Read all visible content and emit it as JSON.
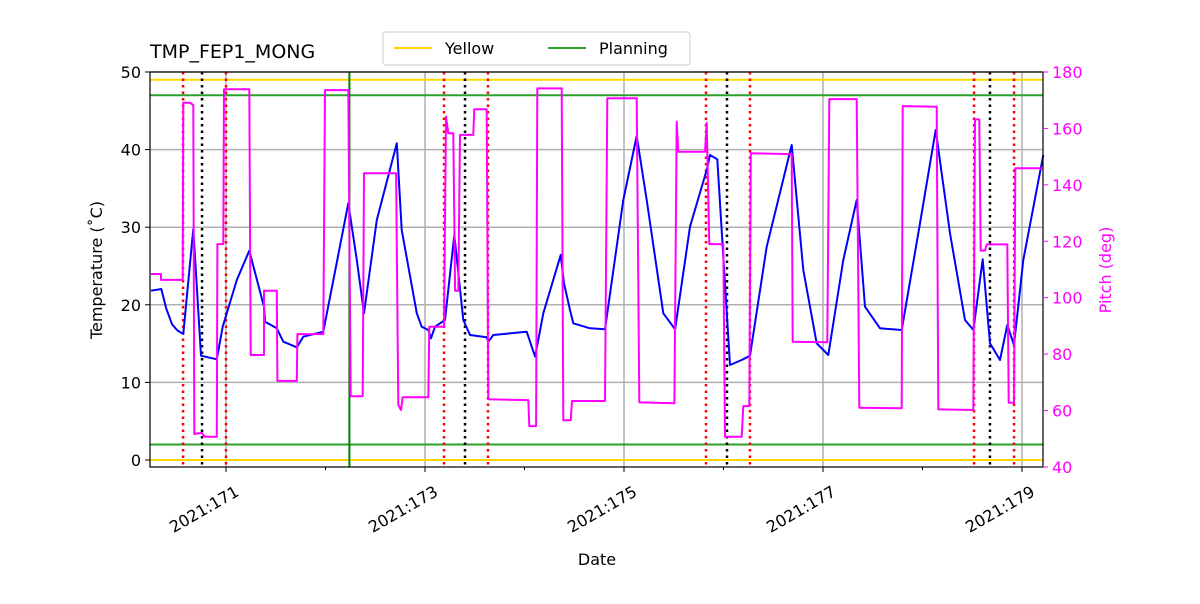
{
  "chart_data": {
    "type": "line",
    "title": "TMP_FEP1_MONG",
    "xlabel": "Date",
    "ylabel": "Temperature ($^\\circ$C)",
    "ylabel_display": "Temperature (˚C)",
    "y2label": "Pitch (deg)",
    "xlim": [
      170.236,
      179.211
    ],
    "ylim": [
      -0.9,
      50
    ],
    "y2lim": [
      40,
      180
    ],
    "grid": true,
    "legend_placement": "top-center (above axes)",
    "x_ticks": [
      {
        "value": 171,
        "label": "2021:171"
      },
      {
        "value": 173,
        "label": "2021:173"
      },
      {
        "value": 175,
        "label": "2021:175"
      },
      {
        "value": 177,
        "label": "2021:177"
      },
      {
        "value": 179,
        "label": "2021:179"
      }
    ],
    "x_minor_ticks": [
      172,
      174,
      176,
      178
    ],
    "y_ticks": [
      0,
      10,
      20,
      30,
      40,
      50
    ],
    "y2_ticks": [
      40,
      60,
      80,
      100,
      120,
      140,
      160,
      180
    ],
    "colors": {
      "temperature": "#0000ff",
      "pitch": "#ff00ff",
      "yellow": "#ffd700",
      "planning": "#2ca02c",
      "planning_vline": "#008000",
      "red_dotted": "#ff0000",
      "black_dotted": "#000000",
      "grid": "#b0b0b0"
    },
    "limit_lines": [
      {
        "name": "Yellow",
        "values": [
          49,
          0
        ],
        "color": "#ffd700"
      },
      {
        "name": "Planning",
        "values": [
          47,
          2
        ],
        "color": "#2ca02c"
      }
    ],
    "legend": [
      "Yellow",
      "Planning"
    ],
    "vertical_lines": {
      "planning": [
        172.24
      ],
      "red_dotted": [
        170.568,
        171.0,
        173.191,
        173.633,
        175.824,
        176.266,
        178.518,
        178.92
      ],
      "black_dotted": [
        170.759,
        173.402,
        176.035,
        178.678
      ]
    },
    "series": [
      {
        "axis": "left",
        "color": "#0000ff",
        "points": [
          [
            170.246,
            21.82
          ],
          [
            170.35,
            22.04
          ],
          [
            170.4,
            19.5
          ],
          [
            170.457,
            17.5
          ],
          [
            170.51,
            16.7
          ],
          [
            170.571,
            16.24
          ],
          [
            170.671,
            29.77
          ],
          [
            170.749,
            13.44
          ],
          [
            170.907,
            12.98
          ],
          [
            170.967,
            17.18
          ],
          [
            171.108,
            23.2
          ],
          [
            171.234,
            26.97
          ],
          [
            171.382,
            19.76
          ],
          [
            171.392,
            17.82
          ],
          [
            171.51,
            16.97
          ],
          [
            171.576,
            15.24
          ],
          [
            171.711,
            14.52
          ],
          [
            171.777,
            15.89
          ],
          [
            171.978,
            16.53
          ],
          [
            172.229,
            33.08
          ],
          [
            172.314,
            25.77
          ],
          [
            172.387,
            18.9
          ],
          [
            172.515,
            30.93
          ],
          [
            172.716,
            40.81
          ],
          [
            172.766,
            29.64
          ],
          [
            172.917,
            18.9
          ],
          [
            172.967,
            17.18
          ],
          [
            173.033,
            16.75
          ],
          [
            173.06,
            15.68
          ],
          [
            173.1,
            17.18
          ],
          [
            173.201,
            18.04
          ],
          [
            173.294,
            29.0
          ],
          [
            173.385,
            18.04
          ],
          [
            173.452,
            16.11
          ],
          [
            173.62,
            15.81
          ],
          [
            173.636,
            15.24
          ],
          [
            173.686,
            16.11
          ],
          [
            174.022,
            16.53
          ],
          [
            174.106,
            13.31
          ],
          [
            174.189,
            18.9
          ],
          [
            174.364,
            26.42
          ],
          [
            174.397,
            22.77
          ],
          [
            174.457,
            19.33
          ],
          [
            174.49,
            17.62
          ],
          [
            174.658,
            16.97
          ],
          [
            174.809,
            16.84
          ],
          [
            174.993,
            33.51
          ],
          [
            175.128,
            41.75
          ],
          [
            175.228,
            33.51
          ],
          [
            175.395,
            18.9
          ],
          [
            175.513,
            16.84
          ],
          [
            175.663,
            30.06
          ],
          [
            175.831,
            37.37
          ],
          [
            175.864,
            39.3
          ],
          [
            175.938,
            38.75
          ],
          [
            176.065,
            12.24
          ],
          [
            176.183,
            12.89
          ],
          [
            176.266,
            13.44
          ],
          [
            176.434,
            27.49
          ],
          [
            176.685,
            40.59
          ],
          [
            176.802,
            24.48
          ],
          [
            176.937,
            15.04
          ],
          [
            177.053,
            13.53
          ],
          [
            177.204,
            25.77
          ],
          [
            177.339,
            33.51
          ],
          [
            177.422,
            19.76
          ],
          [
            177.573,
            16.97
          ],
          [
            177.791,
            16.75
          ],
          [
            177.975,
            30.5
          ],
          [
            178.133,
            42.53
          ],
          [
            178.276,
            29.21
          ],
          [
            178.427,
            18.04
          ],
          [
            178.511,
            16.75
          ],
          [
            178.605,
            25.86
          ],
          [
            178.678,
            15.04
          ],
          [
            178.779,
            12.89
          ],
          [
            178.852,
            17.4
          ],
          [
            178.92,
            14.82
          ],
          [
            179.013,
            25.77
          ],
          [
            179.214,
            39.3
          ]
        ]
      },
      {
        "axis": "right",
        "color": "#ff00ff",
        "points": [
          [
            170.246,
            108.4
          ],
          [
            170.347,
            108.4
          ],
          [
            170.347,
            106.3
          ],
          [
            170.565,
            106.3
          ],
          [
            170.571,
            169.1
          ],
          [
            170.638,
            169.1
          ],
          [
            170.671,
            168.3
          ],
          [
            170.681,
            51.7
          ],
          [
            170.756,
            52.1
          ],
          [
            170.789,
            50.7
          ],
          [
            170.907,
            50.7
          ],
          [
            170.913,
            119.0
          ],
          [
            170.973,
            119.0
          ],
          [
            170.98,
            173.9
          ],
          [
            171.234,
            173.9
          ],
          [
            171.248,
            79.7
          ],
          [
            171.382,
            79.7
          ],
          [
            171.382,
            102.5
          ],
          [
            171.51,
            102.5
          ],
          [
            171.516,
            70.5
          ],
          [
            171.711,
            70.5
          ],
          [
            171.717,
            87.1
          ],
          [
            171.978,
            87.1
          ],
          [
            171.995,
            173.6
          ],
          [
            172.229,
            173.6
          ],
          [
            172.253,
            65.1
          ],
          [
            172.374,
            65.1
          ],
          [
            172.387,
            144.1
          ],
          [
            172.709,
            144.1
          ],
          [
            172.732,
            62.0
          ],
          [
            172.759,
            60.2
          ],
          [
            172.776,
            64.7
          ],
          [
            173.033,
            64.7
          ],
          [
            173.043,
            89.7
          ],
          [
            173.191,
            89.7
          ],
          [
            173.211,
            164.2
          ],
          [
            173.234,
            158.3
          ],
          [
            173.284,
            158.3
          ],
          [
            173.302,
            102.5
          ],
          [
            173.335,
            102.5
          ],
          [
            173.352,
            157.7
          ],
          [
            173.485,
            157.7
          ],
          [
            173.495,
            166.8
          ],
          [
            173.62,
            166.8
          ],
          [
            173.636,
            64.0
          ],
          [
            174.038,
            63.7
          ],
          [
            174.048,
            54.5
          ],
          [
            174.116,
            54.5
          ],
          [
            174.129,
            174.2
          ],
          [
            174.374,
            174.2
          ],
          [
            174.39,
            56.6
          ],
          [
            174.464,
            56.6
          ],
          [
            174.477,
            63.4
          ],
          [
            174.809,
            63.4
          ],
          [
            174.832,
            170.7
          ],
          [
            175.128,
            170.7
          ],
          [
            175.154,
            62.9
          ],
          [
            175.506,
            62.6
          ],
          [
            175.53,
            162.4
          ],
          [
            175.546,
            151.7
          ],
          [
            175.814,
            151.7
          ],
          [
            175.831,
            162.0
          ],
          [
            175.857,
            119.0
          ],
          [
            175.998,
            119.0
          ],
          [
            176.015,
            50.7
          ],
          [
            176.183,
            50.7
          ],
          [
            176.199,
            61.6
          ],
          [
            176.259,
            61.6
          ],
          [
            176.274,
            151.2
          ],
          [
            176.685,
            150.9
          ],
          [
            176.695,
            84.4
          ],
          [
            177.043,
            84.2
          ],
          [
            177.063,
            170.4
          ],
          [
            177.339,
            170.4
          ],
          [
            177.365,
            61.0
          ],
          [
            177.791,
            60.8
          ],
          [
            177.801,
            167.9
          ],
          [
            178.143,
            167.7
          ],
          [
            178.159,
            60.4
          ],
          [
            178.51,
            60.2
          ],
          [
            178.528,
            163.2
          ],
          [
            178.571,
            163.2
          ],
          [
            178.585,
            116.7
          ],
          [
            178.628,
            116.7
          ],
          [
            178.645,
            118.9
          ],
          [
            178.852,
            118.9
          ],
          [
            178.866,
            62.8
          ],
          [
            178.92,
            62.8
          ],
          [
            178.933,
            145.9
          ],
          [
            179.214,
            145.9
          ]
        ]
      }
    ]
  }
}
